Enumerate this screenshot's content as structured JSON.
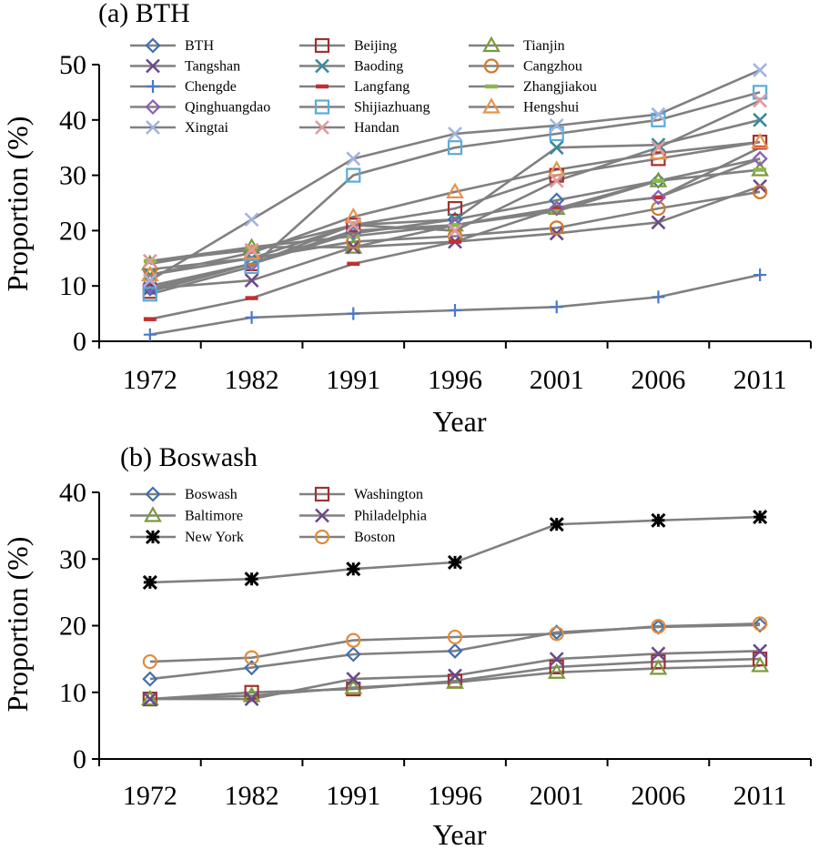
{
  "chart_data": [
    {
      "type": "line",
      "title": "(a) BTH",
      "xlabel": "Year",
      "ylabel": "Proportion (%)",
      "categories": [
        "1972",
        "1982",
        "1991",
        "1996",
        "2001",
        "2006",
        "2011"
      ],
      "ylim": [
        0,
        50
      ],
      "yticks": [
        0,
        10,
        20,
        30,
        40,
        50
      ],
      "grid": false,
      "legend": "top",
      "line_color": "#808080",
      "series": [
        {
          "name": "BTH",
          "marker": "diamond",
          "color": "#3f6fb0",
          "values": [
            9.5,
            14,
            19.5,
            22,
            25.5,
            29,
            33
          ]
        },
        {
          "name": "Beijing",
          "marker": "square",
          "color": "#a03030",
          "values": [
            9,
            14,
            21,
            24,
            30,
            33,
            36
          ]
        },
        {
          "name": "Tianjin",
          "marker": "triangle",
          "color": "#7a9a3a",
          "values": [
            14,
            17,
            17,
            21,
            24,
            29,
            31
          ]
        },
        {
          "name": "Tangshan",
          "marker": "x",
          "color": "#6a4a8a",
          "values": [
            9.5,
            11,
            17,
            18,
            19.5,
            21.5,
            28
          ]
        },
        {
          "name": "Baoding",
          "marker": "x",
          "color": "#3a8a9a",
          "values": [
            12,
            15,
            21,
            22,
            35,
            35.5,
            40
          ]
        },
        {
          "name": "Cangzhou",
          "marker": "circle",
          "color": "#d0782a",
          "values": [
            13,
            15,
            18,
            19,
            20.5,
            24,
            27
          ]
        },
        {
          "name": "Chengde",
          "marker": "plus",
          "color": "#4a78c8",
          "values": [
            1.2,
            4.3,
            5,
            5.6,
            6.2,
            8,
            12
          ]
        },
        {
          "name": "Langfang",
          "marker": "dash",
          "color": "#c03030",
          "values": [
            4,
            7.8,
            14,
            18,
            24,
            26,
            35
          ]
        },
        {
          "name": "Zhangjiakou",
          "marker": "dash",
          "color": "#8ab84a",
          "values": [
            14.5,
            17,
            19,
            21,
            23.5,
            29,
            31
          ]
        },
        {
          "name": "Qinghuangdao",
          "marker": "diamond",
          "color": "#8a62b0",
          "values": [
            10,
            14,
            20,
            21,
            24,
            26,
            33
          ]
        },
        {
          "name": "Shijiazhuang",
          "marker": "square",
          "color": "#5aaad8",
          "values": [
            8.5,
            13.5,
            30,
            35,
            37.5,
            40,
            45
          ]
        },
        {
          "name": "Hengshui",
          "marker": "triangle",
          "color": "#e8924a",
          "values": [
            12,
            16,
            22.5,
            27,
            31,
            34,
            36
          ]
        },
        {
          "name": "Xingtai",
          "marker": "x",
          "color": "#a0b4e0",
          "values": [
            11,
            22,
            33,
            37.5,
            39,
            41,
            49
          ]
        },
        {
          "name": "Handan",
          "marker": "x",
          "color": "#e09aa0",
          "values": [
            14.5,
            16.5,
            21,
            20,
            29,
            35,
            43.5
          ]
        }
      ]
    },
    {
      "type": "line",
      "title": "(b) Boswash",
      "xlabel": "Year",
      "ylabel": "Proportion (%)",
      "categories": [
        "1972",
        "1982",
        "1991",
        "1996",
        "2001",
        "2006",
        "2011"
      ],
      "ylim": [
        0,
        40
      ],
      "yticks": [
        0,
        10,
        20,
        30,
        40
      ],
      "grid": false,
      "legend": "top-left",
      "line_color": "#808080",
      "series": [
        {
          "name": "Boswash",
          "marker": "diamond",
          "color": "#3f6fb0",
          "values": [
            12,
            13.7,
            15.7,
            16.2,
            19,
            19.8,
            20.1
          ]
        },
        {
          "name": "Washington",
          "marker": "square",
          "color": "#a03030",
          "values": [
            9,
            10,
            10.5,
            11.7,
            13.8,
            14.6,
            15
          ]
        },
        {
          "name": "Baltimore",
          "marker": "triangle",
          "color": "#7a9a3a",
          "values": [
            9,
            9.5,
            10.7,
            11.5,
            13,
            13.6,
            14
          ]
        },
        {
          "name": "Philadelphia",
          "marker": "x",
          "color": "#6a4a8a",
          "values": [
            9,
            9,
            12,
            12.5,
            15,
            15.8,
            16.2
          ]
        },
        {
          "name": "New York",
          "marker": "asterisk",
          "color": "#000000",
          "values": [
            26.5,
            27,
            28.5,
            29.5,
            35.2,
            35.8,
            36.3
          ]
        },
        {
          "name": "Boston",
          "marker": "circle",
          "color": "#e08a3a",
          "values": [
            14.6,
            15.2,
            17.8,
            18.3,
            18.8,
            19.9,
            20.3
          ]
        }
      ]
    }
  ]
}
